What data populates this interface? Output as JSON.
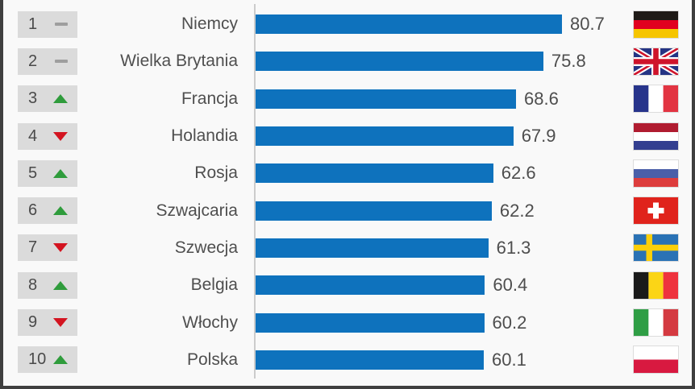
{
  "chart_data": {
    "type": "bar",
    "orientation": "horizontal",
    "title": "",
    "xlabel": "",
    "ylabel": "",
    "categories": [
      "Niemcy",
      "Wielka Brytania",
      "Francja",
      "Holandia",
      "Rosja",
      "Szwajcaria",
      "Szwecja",
      "Belgia",
      "Włochy",
      "Polska"
    ],
    "values": [
      80.7,
      75.8,
      68.6,
      67.9,
      62.6,
      62.2,
      61.3,
      60.4,
      60.2,
      60.1
    ],
    "ranks": [
      1,
      2,
      3,
      4,
      5,
      6,
      7,
      8,
      9,
      10
    ],
    "rank_trends": [
      "same",
      "same",
      "up",
      "down",
      "up",
      "up",
      "down",
      "up",
      "down",
      "up"
    ],
    "xlim": [
      0,
      90
    ],
    "grid": false,
    "legend": false,
    "value_labels": true
  },
  "rows": [
    {
      "rank": "1",
      "trend": "same",
      "country": "Niemcy",
      "value": "80.7",
      "flag": "germany"
    },
    {
      "rank": "2",
      "trend": "same",
      "country": "Wielka Brytania",
      "value": "75.8",
      "flag": "united-kingdom"
    },
    {
      "rank": "3",
      "trend": "up",
      "country": "Francja",
      "value": "68.6",
      "flag": "france"
    },
    {
      "rank": "4",
      "trend": "down",
      "country": "Holandia",
      "value": "67.9",
      "flag": "netherlands"
    },
    {
      "rank": "5",
      "trend": "up",
      "country": "Rosja",
      "value": "62.6",
      "flag": "russia"
    },
    {
      "rank": "6",
      "trend": "up",
      "country": "Szwajcaria",
      "value": "62.2",
      "flag": "switzerland"
    },
    {
      "rank": "7",
      "trend": "down",
      "country": "Szwecja",
      "value": "61.3",
      "flag": "sweden"
    },
    {
      "rank": "8",
      "trend": "up",
      "country": "Belgia",
      "value": "60.4",
      "flag": "belgium"
    },
    {
      "rank": "9",
      "trend": "down",
      "country": "Włochy",
      "value": "60.2",
      "flag": "italy"
    },
    {
      "rank": "10",
      "trend": "up",
      "country": "Polska",
      "value": "60.1",
      "flag": "poland"
    }
  ],
  "colors": {
    "bar": "#0e72bd",
    "trend_up": "#2f9c3c",
    "trend_down": "#d31420",
    "trend_same": "#9e9e9e",
    "rank_box": "#dbdbdb",
    "text": "#4f4f4f",
    "axis": "#cccccc",
    "frame_border": "#3f3f3f",
    "background": "#f9f9f9"
  }
}
